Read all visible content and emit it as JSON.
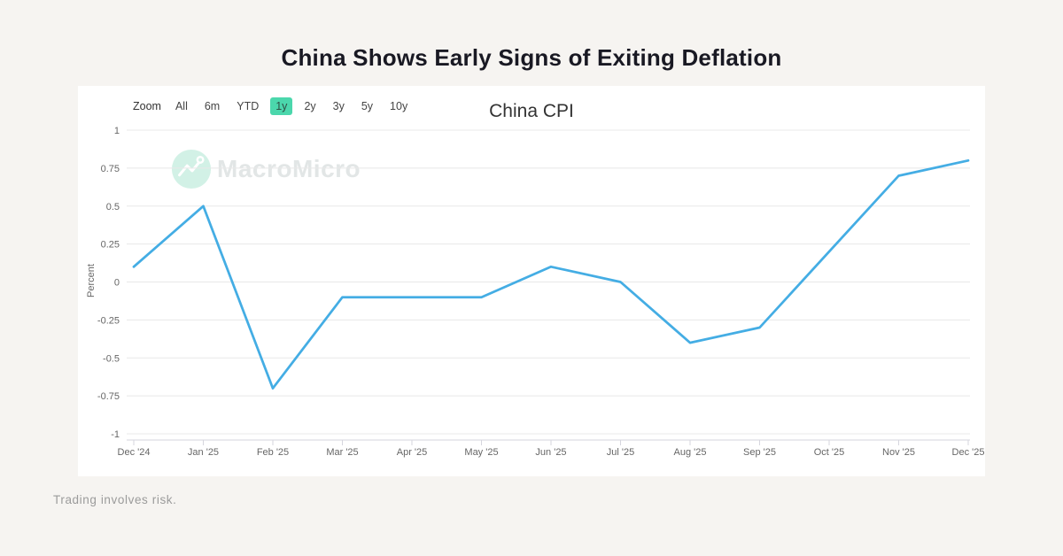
{
  "page": {
    "title": "China Shows Early Signs of Exiting Deflation",
    "footer_note": "Trading involves risk."
  },
  "chart": {
    "title": "China CPI",
    "watermark": "MacroMicro",
    "zoom_label": "Zoom",
    "range_buttons": [
      {
        "label": "All",
        "selected": false
      },
      {
        "label": "6m",
        "selected": false
      },
      {
        "label": "YTD",
        "selected": false
      },
      {
        "label": "1y",
        "selected": true
      },
      {
        "label": "2y",
        "selected": false
      },
      {
        "label": "3y",
        "selected": false
      },
      {
        "label": "5y",
        "selected": false
      },
      {
        "label": "10y",
        "selected": false
      }
    ],
    "colors": {
      "line": "#44ade4",
      "selected_button_bg": "#4bd7ac",
      "watermark_mint": "#d2f1e6",
      "grid": "#e8e8e8",
      "axis": "#d6d6de"
    }
  },
  "chart_data": {
    "type": "line",
    "title": "China CPI",
    "xlabel": "",
    "ylabel": "Percent",
    "categories": [
      "Dec '24",
      "Jan '25",
      "Feb '25",
      "Mar '25",
      "Apr '25",
      "May '25",
      "Jun '25",
      "Jul '25",
      "Aug '25",
      "Sep '25",
      "Oct '25",
      "Nov '25",
      "Dec '25"
    ],
    "values": [
      0.1,
      0.5,
      -0.7,
      -0.1,
      -0.1,
      -0.1,
      0.1,
      0.0,
      -0.4,
      -0.3,
      0.2,
      0.7,
      0.8
    ],
    "ylim": [
      -1,
      1
    ],
    "yticks": [
      1,
      0.75,
      0.5,
      0.25,
      0,
      -0.25,
      -0.5,
      -0.75,
      -1
    ],
    "grid": true,
    "legend_position": "none",
    "series_name": "China CPI"
  }
}
